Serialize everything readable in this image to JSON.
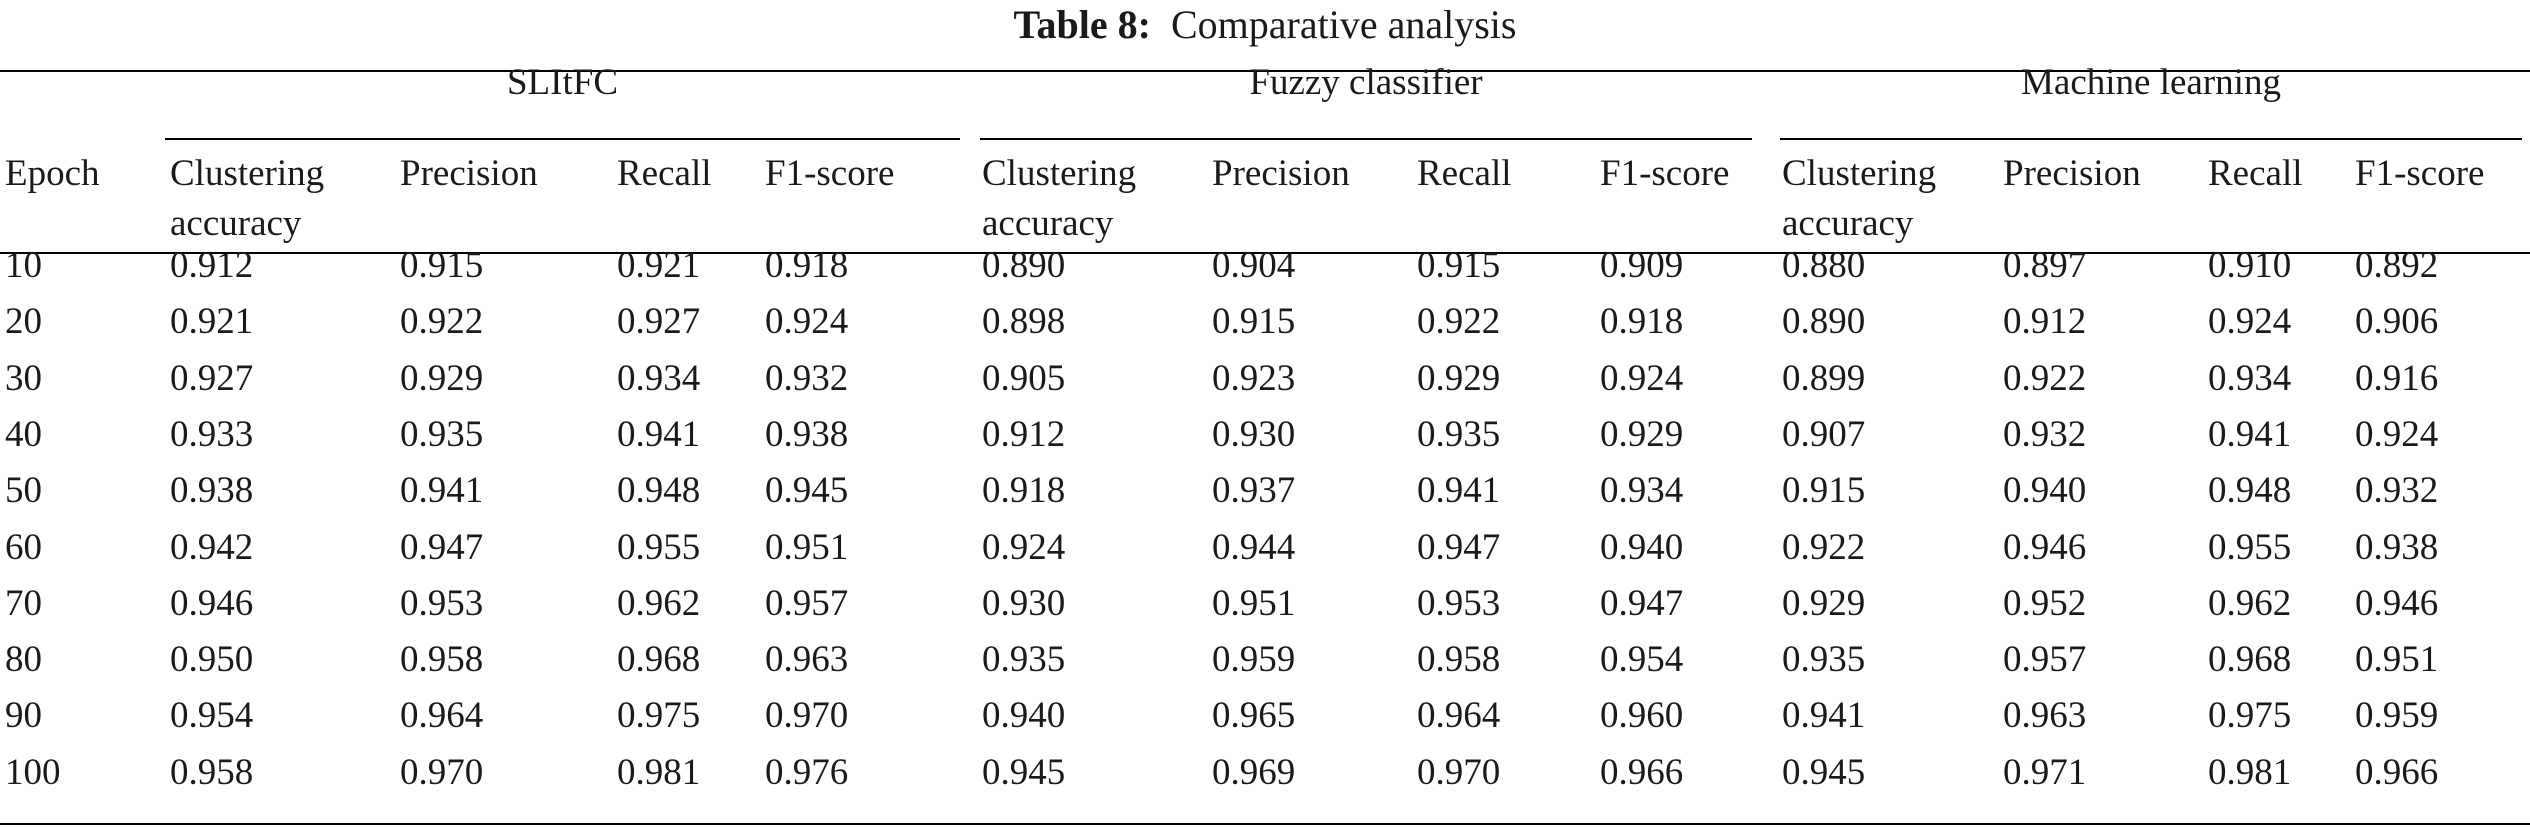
{
  "table": {
    "caption_label": "Table 8:",
    "caption_text": "Comparative analysis",
    "epoch_header": "Epoch",
    "groups": [
      {
        "name": "SLItFC",
        "columns": [
          {
            "line1": "Clustering",
            "line2": "accuracy"
          },
          {
            "line1": "Precision",
            "line2": ""
          },
          {
            "line1": "Recall",
            "line2": ""
          },
          {
            "line1": "F1-score",
            "line2": ""
          }
        ]
      },
      {
        "name": "Fuzzy classifier",
        "columns": [
          {
            "line1": "Clustering",
            "line2": "accuracy"
          },
          {
            "line1": "Precision",
            "line2": ""
          },
          {
            "line1": "Recall",
            "line2": ""
          },
          {
            "line1": "F1-score",
            "line2": ""
          }
        ]
      },
      {
        "name": "Machine learning",
        "columns": [
          {
            "line1": "Clustering",
            "line2": "accuracy"
          },
          {
            "line1": "Precision",
            "line2": ""
          },
          {
            "line1": "Recall",
            "line2": ""
          },
          {
            "line1": "F1-score",
            "line2": ""
          }
        ]
      }
    ],
    "rows": [
      [
        "10",
        "0.912",
        "0.915",
        "0.921",
        "0.918",
        "0.890",
        "0.904",
        "0.915",
        "0.909",
        "0.880",
        "0.897",
        "0.910",
        "0.892"
      ],
      [
        "20",
        "0.921",
        "0.922",
        "0.927",
        "0.924",
        "0.898",
        "0.915",
        "0.922",
        "0.918",
        "0.890",
        "0.912",
        "0.924",
        "0.906"
      ],
      [
        "30",
        "0.927",
        "0.929",
        "0.934",
        "0.932",
        "0.905",
        "0.923",
        "0.929",
        "0.924",
        "0.899",
        "0.922",
        "0.934",
        "0.916"
      ],
      [
        "40",
        "0.933",
        "0.935",
        "0.941",
        "0.938",
        "0.912",
        "0.930",
        "0.935",
        "0.929",
        "0.907",
        "0.932",
        "0.941",
        "0.924"
      ],
      [
        "50",
        "0.938",
        "0.941",
        "0.948",
        "0.945",
        "0.918",
        "0.937",
        "0.941",
        "0.934",
        "0.915",
        "0.940",
        "0.948",
        "0.932"
      ],
      [
        "60",
        "0.942",
        "0.947",
        "0.955",
        "0.951",
        "0.924",
        "0.944",
        "0.947",
        "0.940",
        "0.922",
        "0.946",
        "0.955",
        "0.938"
      ],
      [
        "70",
        "0.946",
        "0.953",
        "0.962",
        "0.957",
        "0.930",
        "0.951",
        "0.953",
        "0.947",
        "0.929",
        "0.952",
        "0.962",
        "0.946"
      ],
      [
        "80",
        "0.950",
        "0.958",
        "0.968",
        "0.963",
        "0.935",
        "0.959",
        "0.958",
        "0.954",
        "0.935",
        "0.957",
        "0.968",
        "0.951"
      ],
      [
        "90",
        "0.954",
        "0.964",
        "0.975",
        "0.970",
        "0.940",
        "0.965",
        "0.964",
        "0.960",
        "0.941",
        "0.963",
        "0.975",
        "0.959"
      ],
      [
        "100",
        "0.958",
        "0.970",
        "0.981",
        "0.976",
        "0.945",
        "0.969",
        "0.970",
        "0.966",
        "0.945",
        "0.971",
        "0.981",
        "0.966"
      ]
    ]
  }
}
